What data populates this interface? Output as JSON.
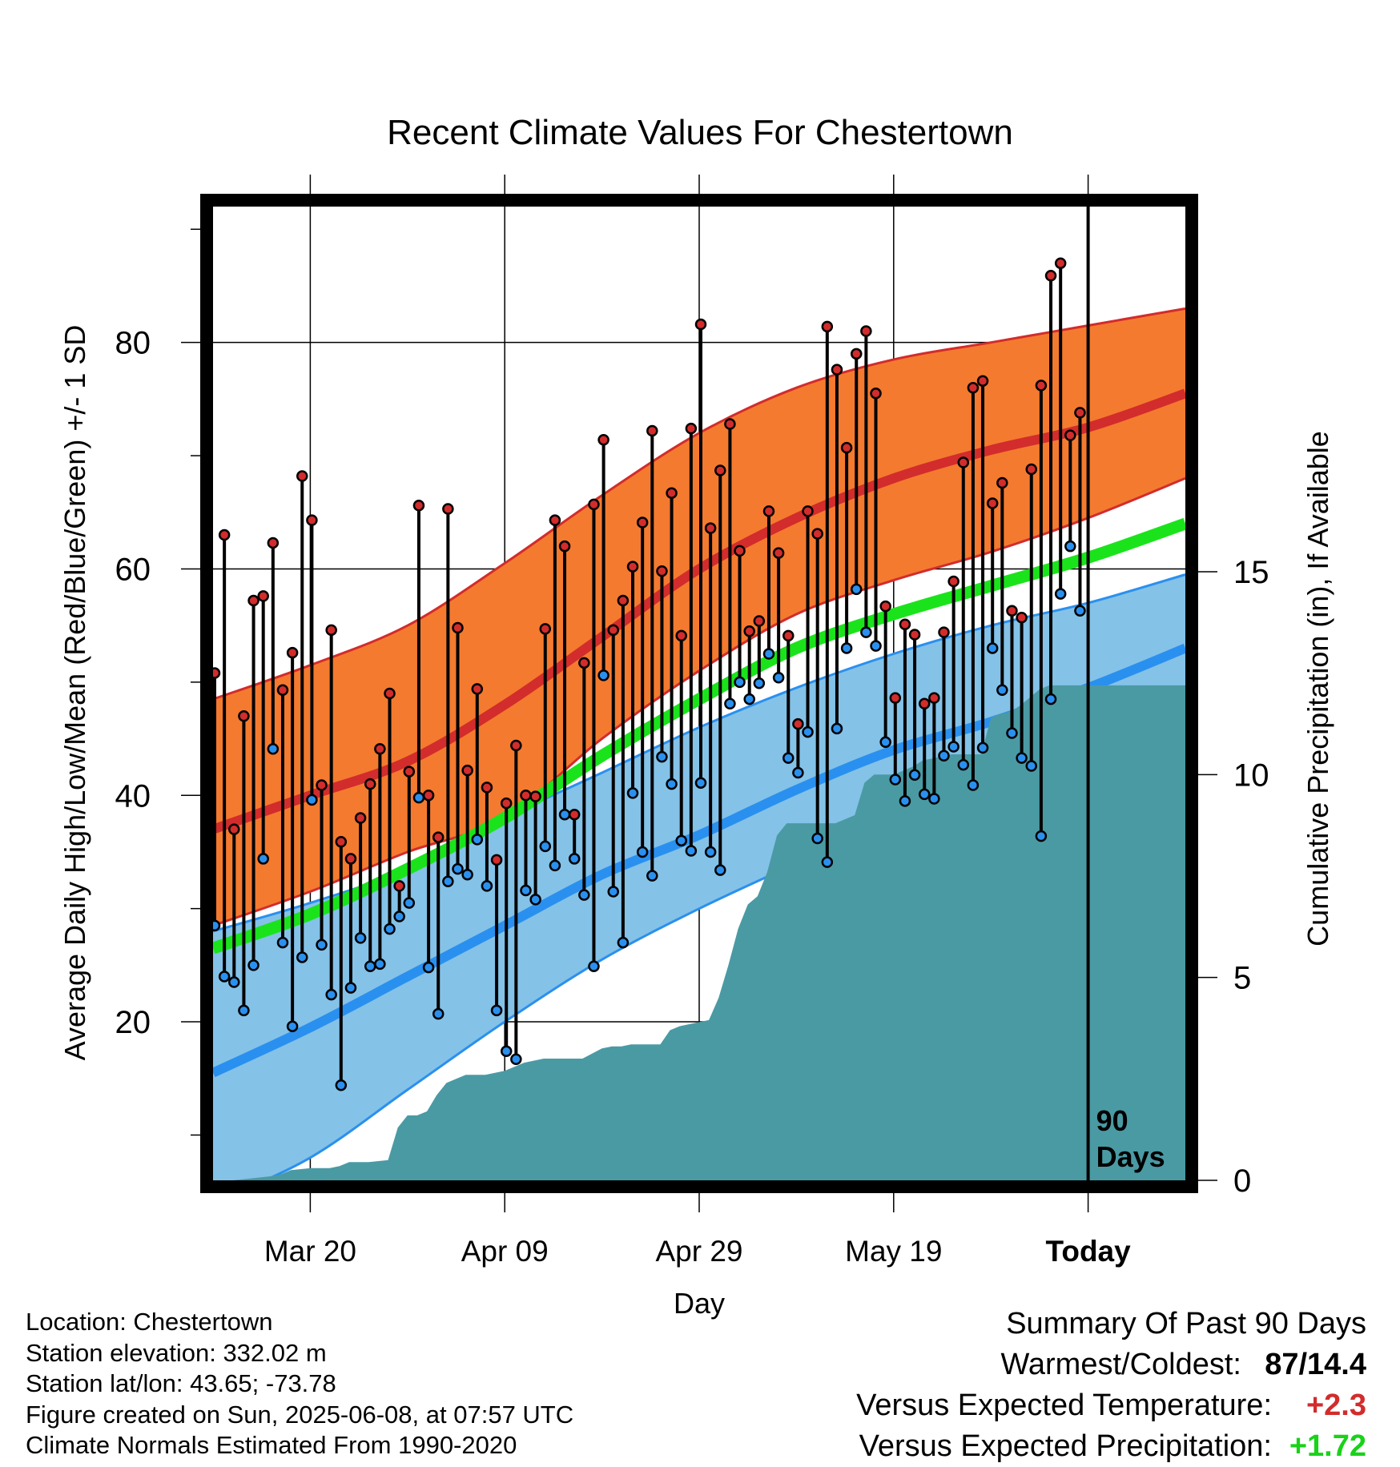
{
  "title": "Recent Climate Values For Chestertown",
  "colors": {
    "high_band": "#f47a2f",
    "high_mean": "#d22c2c",
    "low_band": "#84c2e8",
    "low_mean": "#2a90ef",
    "daily_mean": "#1be31b",
    "precip": "#4a9aa4",
    "high_marker": "#d22c2c",
    "low_marker": "#2a90ef",
    "warm_text": "#d22c2c",
    "precip_text": "#19d219"
  },
  "chart_data": {
    "type": "line",
    "title": "Recent Climate Values For Chestertown",
    "xlabel": "Day",
    "ylabel": "Average Daily High/Low/Mean (Red/Blue/Green) +/- 1 SD",
    "y2label": "Cumulative Precipitation (in), If Available",
    "x_unit": "days since Mar 09",
    "xlim": [
      0,
      100
    ],
    "ylim": [
      6,
      92
    ],
    "y2lim": [
      0,
      24
    ],
    "x_ticks": [
      {
        "x": 10,
        "label": "Mar 20"
      },
      {
        "x": 30,
        "label": "Apr 09"
      },
      {
        "x": 50,
        "label": "Apr 29"
      },
      {
        "x": 70,
        "label": "May 19"
      },
      {
        "x": 90,
        "label": "Today"
      }
    ],
    "y_ticks": [
      20,
      40,
      60,
      80
    ],
    "y2_ticks": [
      0,
      5,
      10,
      15
    ],
    "today_marker": {
      "x": 90,
      "label_line1": "90",
      "label_line2": "Days"
    },
    "normals": {
      "x": [
        0,
        10,
        20,
        30,
        40,
        50,
        60,
        70,
        80,
        90,
        100
      ],
      "high_mean": [
        37.0,
        40.0,
        43.0,
        48.0,
        54.0,
        60.0,
        64.5,
        68.0,
        70.5,
        72.5,
        75.5
      ],
      "high_upper": [
        48.5,
        51.5,
        55.0,
        60.5,
        66.5,
        72.0,
        76.0,
        78.5,
        80.0,
        81.5,
        83.0
      ],
      "high_lower": [
        28.5,
        31.5,
        35.0,
        38.0,
        45.0,
        51.0,
        56.0,
        59.0,
        61.5,
        64.5,
        68.0
      ],
      "mean": [
        26.5,
        29.5,
        33.5,
        38.0,
        43.5,
        48.5,
        53.0,
        56.0,
        58.5,
        61.0,
        64.0
      ],
      "low_mean": [
        15.5,
        19.5,
        24.0,
        28.5,
        33.0,
        36.5,
        40.5,
        44.0,
        46.5,
        49.5,
        53.0
      ],
      "low_upper": [
        28.0,
        30.5,
        33.5,
        38.0,
        42.0,
        46.0,
        49.5,
        52.5,
        55.0,
        57.0,
        59.5
      ],
      "low_lower": [
        4.0,
        8.0,
        14.0,
        20.0,
        25.5,
        30.0,
        34.0,
        38.0,
        41.0,
        44.0,
        46.5
      ]
    },
    "daily": {
      "x": [
        0,
        1,
        2,
        3,
        4,
        5,
        6,
        7,
        8,
        9,
        10,
        11,
        12,
        13,
        14,
        15,
        16,
        17,
        18,
        19,
        20,
        21,
        22,
        23,
        24,
        25,
        26,
        27,
        28,
        29,
        30,
        31,
        32,
        33,
        34,
        35,
        36,
        37,
        38,
        39,
        40,
        41,
        42,
        43,
        44,
        45,
        46,
        47,
        48,
        49,
        50,
        51,
        52,
        53,
        54,
        55,
        56,
        57,
        58,
        59,
        60,
        61,
        62,
        63,
        64,
        65,
        66,
        67,
        68,
        69,
        70,
        71,
        72,
        73,
        74,
        75,
        76,
        77,
        78,
        79,
        80,
        81,
        82,
        83,
        84,
        85,
        86,
        87,
        88,
        89
      ],
      "high": [
        50.8,
        63.0,
        37.0,
        47.0,
        57.2,
        57.6,
        62.3,
        49.3,
        52.6,
        68.2,
        64.3,
        40.9,
        54.6,
        35.9,
        34.4,
        38.0,
        41.0,
        44.1,
        49.0,
        32.0,
        42.1,
        65.6,
        40.0,
        36.3,
        65.3,
        54.8,
        42.2,
        49.4,
        40.7,
        34.3,
        39.3,
        44.4,
        40.0,
        39.9,
        54.7,
        64.3,
        62.0,
        38.3,
        51.7,
        65.7,
        71.4,
        54.6,
        57.2,
        60.2,
        64.1,
        72.2,
        59.8,
        66.7,
        54.1,
        72.4,
        81.6,
        63.6,
        68.7,
        72.8,
        61.6,
        54.5,
        55.4,
        65.1,
        61.4,
        54.1,
        46.3,
        65.1,
        63.1,
        81.4,
        77.6,
        70.7,
        79.0,
        81.0,
        75.5,
        56.7,
        48.6,
        55.1,
        54.2,
        48.1,
        48.6,
        54.4,
        58.9,
        69.4,
        76.0,
        76.6,
        65.8,
        67.6,
        56.3,
        55.7,
        68.8,
        76.2,
        85.9,
        87.0,
        71.8,
        73.8
      ],
      "low": [
        28.5,
        24.0,
        23.5,
        21.0,
        25.0,
        34.4,
        44.1,
        27.0,
        19.6,
        25.7,
        39.6,
        26.8,
        22.4,
        14.4,
        23.0,
        27.4,
        24.9,
        25.1,
        28.2,
        29.3,
        30.5,
        39.8,
        24.8,
        20.7,
        32.4,
        33.5,
        33.0,
        36.1,
        32.0,
        21.0,
        17.4,
        16.7,
        31.6,
        30.8,
        35.5,
        33.8,
        38.3,
        34.4,
        31.2,
        24.9,
        50.6,
        31.5,
        27.0,
        40.2,
        35.0,
        32.9,
        43.4,
        41.0,
        36.0,
        35.1,
        41.1,
        35.0,
        33.4,
        48.1,
        50.0,
        48.5,
        49.9,
        52.5,
        50.4,
        43.3,
        42.0,
        45.6,
        36.2,
        34.1,
        45.9,
        53.0,
        58.2,
        54.4,
        53.2,
        44.7,
        41.4,
        39.5,
        41.8,
        40.1,
        39.7,
        43.5,
        44.3,
        42.7,
        40.9,
        44.2,
        53.0,
        49.3,
        45.5,
        43.3,
        42.6,
        36.4,
        48.5,
        57.8,
        62.0,
        56.3
      ]
    },
    "precip": {
      "x": [
        0,
        2,
        4,
        6,
        7,
        8,
        10,
        12,
        13,
        14,
        16,
        18,
        19,
        20,
        21,
        22,
        23,
        24,
        25,
        26,
        27,
        28,
        30,
        32,
        34,
        36,
        38,
        40,
        41,
        42,
        43,
        44,
        46,
        47,
        48,
        50,
        51,
        52,
        53,
        54,
        55,
        56,
        57,
        58,
        59,
        60,
        61,
        62,
        63,
        64,
        66,
        67,
        68,
        69,
        70,
        71,
        72,
        73,
        74,
        75,
        76,
        77,
        78,
        79,
        80,
        81,
        82,
        83,
        84,
        85,
        86,
        87,
        88,
        89,
        90,
        100
      ],
      "y": [
        0,
        0,
        0.05,
        0.1,
        0.15,
        0.25,
        0.3,
        0.3,
        0.35,
        0.45,
        0.45,
        0.5,
        1.3,
        1.6,
        1.6,
        1.7,
        2.1,
        2.4,
        2.5,
        2.6,
        2.6,
        2.6,
        2.7,
        2.9,
        3.0,
        3.0,
        3.0,
        3.25,
        3.3,
        3.3,
        3.35,
        3.35,
        3.35,
        3.7,
        3.8,
        3.9,
        3.95,
        4.5,
        5.3,
        6.2,
        6.8,
        7.0,
        7.6,
        8.5,
        8.8,
        8.8,
        8.8,
        8.8,
        8.8,
        8.8,
        9.0,
        9.8,
        10.0,
        10.0,
        10.0,
        10.1,
        10.2,
        10.35,
        10.4,
        10.45,
        10.5,
        10.5,
        10.5,
        10.5,
        11.4,
        11.5,
        11.55,
        11.7,
        11.9,
        12.1,
        12.2,
        12.2,
        12.2,
        12.2,
        12.2,
        12.2
      ]
    }
  },
  "footer": {
    "location": "Location: Chestertown",
    "elevation": "Station elevation: 332.02 m",
    "latlon": "Station lat/lon: 43.65; -73.78",
    "created": "Figure created on Sun, 2025-06-08, at 07:57 UTC",
    "normals": "Climate Normals Estimated From 1990-2020"
  },
  "summary": {
    "heading": "Summary Of Past 90 Days",
    "warm_cold_label": "Warmest/Coldest:",
    "warm_cold_value": "87/14.4",
    "temp_label": "Versus Expected Temperature:",
    "temp_value": "+2.3",
    "precip_label": "Versus Expected Precipitation:",
    "precip_value": "+1.72"
  }
}
